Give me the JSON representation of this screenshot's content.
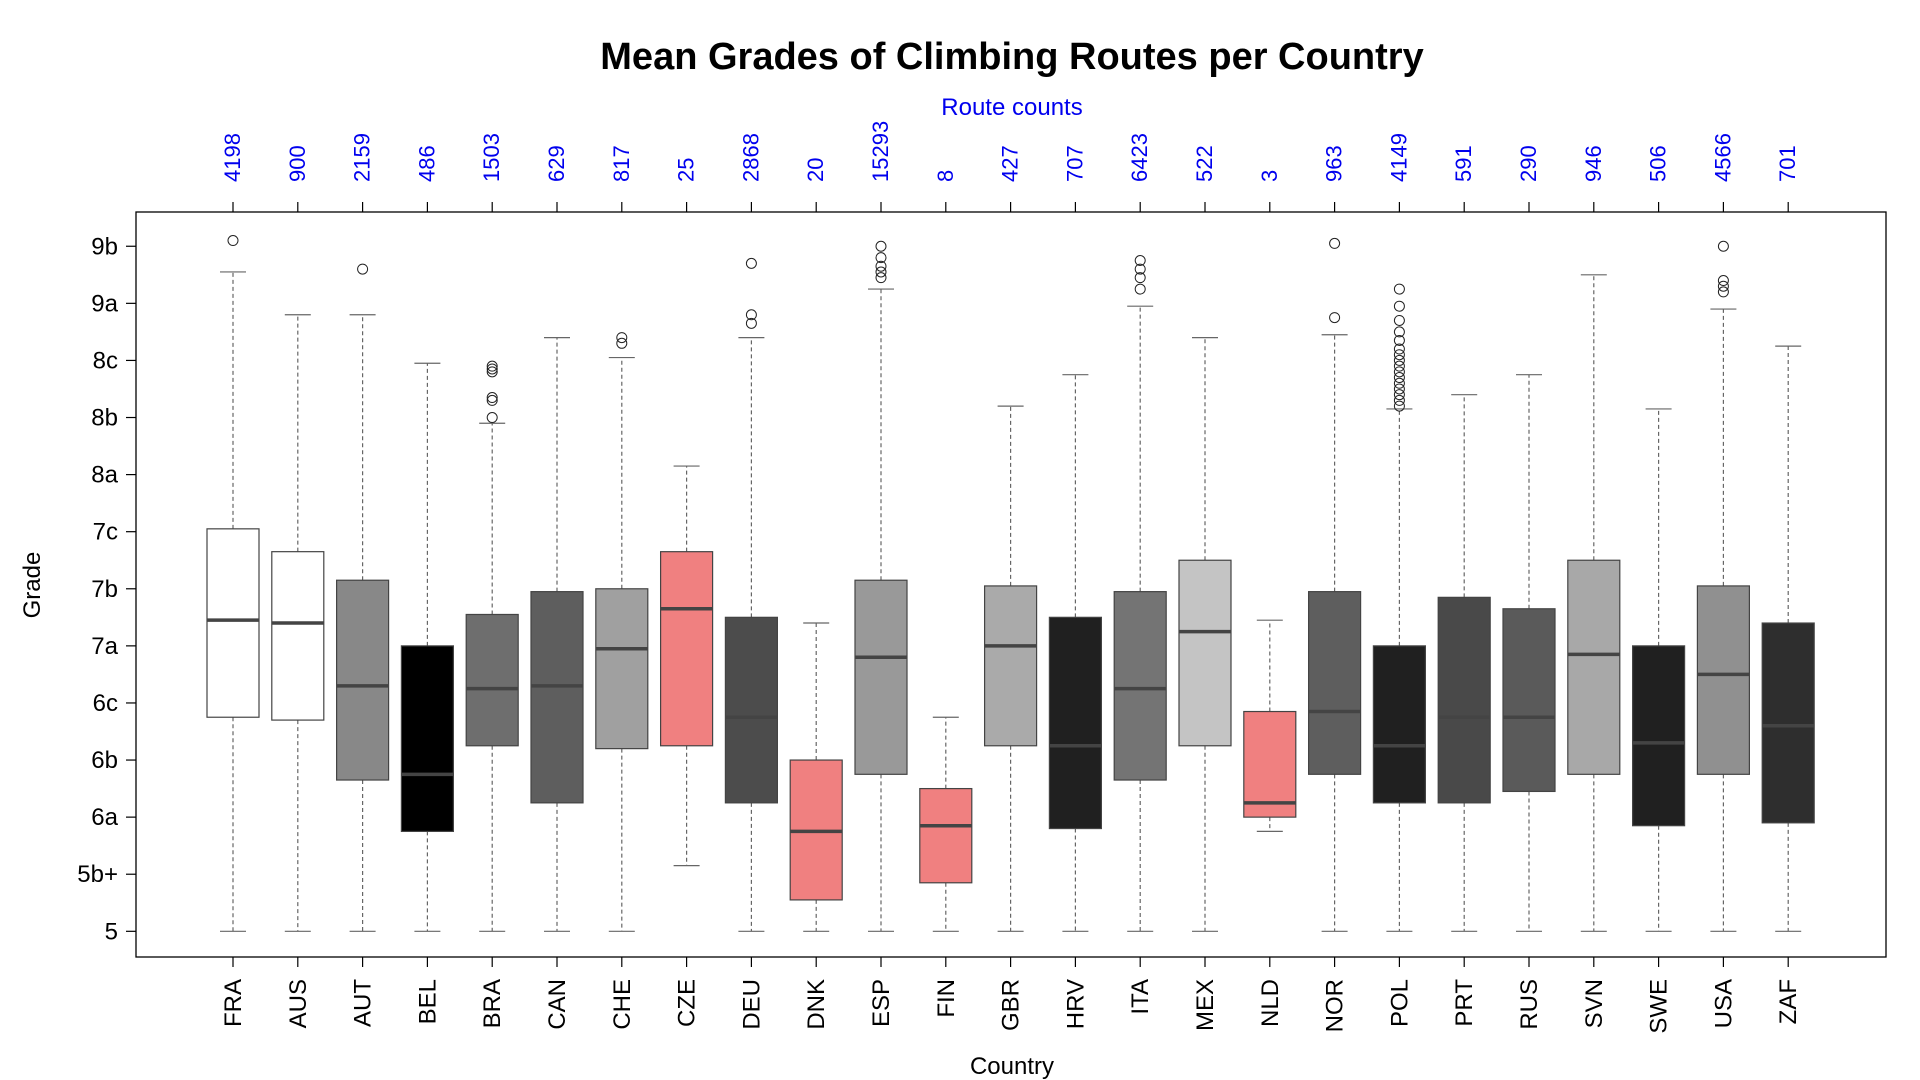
{
  "chart_data": {
    "type": "boxplot",
    "title": "Mean Grades of Climbing Routes per Country",
    "xlabel": "Country",
    "ylabel": "Grade",
    "top_axis_label": "Route counts",
    "y_ticks": [
      {
        "value": 0,
        "label": "5"
      },
      {
        "value": 1,
        "label": "5b+"
      },
      {
        "value": 2,
        "label": "6a"
      },
      {
        "value": 3,
        "label": "6b"
      },
      {
        "value": 4,
        "label": "6c"
      },
      {
        "value": 5,
        "label": "7a"
      },
      {
        "value": 6,
        "label": "7b"
      },
      {
        "value": 7,
        "label": "7c"
      },
      {
        "value": 8,
        "label": "8a"
      },
      {
        "value": 9,
        "label": "8b"
      },
      {
        "value": 10,
        "label": "8c"
      },
      {
        "value": 11,
        "label": "9a"
      },
      {
        "value": 12,
        "label": "9b"
      }
    ],
    "ylim": [
      -0.45,
      12.6
    ],
    "colors": {
      "highlight": "#f08080",
      "count": "#0000ee",
      "whisker": "#666666"
    },
    "series": [
      {
        "country": "FRA",
        "count": "4198",
        "fill": "#ffffff",
        "min": 0,
        "q1": 3.75,
        "median": 5.45,
        "q3": 7.05,
        "max": 11.55,
        "outliers": [
          12.1
        ]
      },
      {
        "country": "AUS",
        "count": "900",
        "fill": "#ffffff",
        "min": 0,
        "q1": 3.7,
        "median": 5.4,
        "q3": 6.65,
        "max": 10.8,
        "outliers": []
      },
      {
        "country": "AUT",
        "count": "2159",
        "fill": "#888888",
        "min": 0,
        "q1": 2.65,
        "median": 4.3,
        "q3": 6.15,
        "max": 10.8,
        "outliers": [
          11.6
        ]
      },
      {
        "country": "BEL",
        "count": "486",
        "fill": "#000000",
        "min": 0,
        "q1": 1.75,
        "median": 2.75,
        "q3": 5.0,
        "max": 9.95,
        "outliers": []
      },
      {
        "country": "BRA",
        "count": "1503",
        "fill": "#6e6e6e",
        "min": 0,
        "q1": 3.25,
        "median": 4.25,
        "q3": 5.55,
        "max": 8.9,
        "outliers": [
          9.0,
          9.3,
          9.35,
          9.8,
          9.85,
          9.9
        ]
      },
      {
        "country": "CAN",
        "count": "629",
        "fill": "#5e5e5e",
        "min": 0,
        "q1": 2.25,
        "median": 4.3,
        "q3": 5.95,
        "max": 10.4,
        "outliers": []
      },
      {
        "country": "CHE",
        "count": "817",
        "fill": "#a0a0a0",
        "min": 0,
        "q1": 3.2,
        "median": 4.95,
        "q3": 6.0,
        "max": 10.05,
        "outliers": [
          10.3,
          10.4
        ]
      },
      {
        "country": "CZE",
        "count": "25",
        "fill": "#f08080",
        "min": 1.15,
        "q1": 3.25,
        "median": 5.65,
        "q3": 6.65,
        "max": 8.15,
        "outliers": []
      },
      {
        "country": "DEU",
        "count": "2868",
        "fill": "#4c4c4c",
        "min": 0,
        "q1": 2.25,
        "median": 3.75,
        "q3": 5.5,
        "max": 10.4,
        "outliers": [
          10.65,
          10.8,
          11.7
        ]
      },
      {
        "country": "DNK",
        "count": "20",
        "fill": "#f08080",
        "min": 0,
        "q1": 0.55,
        "median": 1.75,
        "q3": 3.0,
        "max": 5.4,
        "outliers": []
      },
      {
        "country": "ESP",
        "count": "15293",
        "fill": "#999999",
        "min": 0,
        "q1": 2.75,
        "median": 4.8,
        "q3": 6.15,
        "max": 11.25,
        "outliers": [
          11.45,
          11.55,
          11.65,
          11.8,
          12.0
        ]
      },
      {
        "country": "FIN",
        "count": "8",
        "fill": "#f08080",
        "min": 0,
        "q1": 0.85,
        "median": 1.85,
        "q3": 2.5,
        "max": 3.75,
        "outliers": []
      },
      {
        "country": "GBR",
        "count": "427",
        "fill": "#aaaaaa",
        "min": 0,
        "q1": 3.25,
        "median": 5.0,
        "q3": 6.05,
        "max": 9.2,
        "outliers": []
      },
      {
        "country": "HRV",
        "count": "707",
        "fill": "#202020",
        "min": 0,
        "q1": 1.8,
        "median": 3.25,
        "q3": 5.5,
        "max": 9.75,
        "outliers": []
      },
      {
        "country": "ITA",
        "count": "6423",
        "fill": "#747474",
        "min": 0,
        "q1": 2.65,
        "median": 4.25,
        "q3": 5.95,
        "max": 10.95,
        "outliers": [
          11.25,
          11.45,
          11.6,
          11.75
        ]
      },
      {
        "country": "MEX",
        "count": "522",
        "fill": "#c4c4c4",
        "min": 0,
        "q1": 3.25,
        "median": 5.25,
        "q3": 6.5,
        "max": 10.4,
        "outliers": []
      },
      {
        "country": "NLD",
        "count": "3",
        "fill": "#f08080",
        "min": 1.75,
        "q1": 2.0,
        "median": 2.25,
        "q3": 3.85,
        "max": 5.45,
        "outliers": []
      },
      {
        "country": "NOR",
        "count": "963",
        "fill": "#5e5e5e",
        "min": 0,
        "q1": 2.75,
        "median": 3.85,
        "q3": 5.95,
        "max": 10.45,
        "outliers": [
          10.75,
          12.05
        ]
      },
      {
        "country": "POL",
        "count": "4149",
        "fill": "#202020",
        "min": 0,
        "q1": 2.25,
        "median": 3.25,
        "q3": 5.0,
        "max": 9.15,
        "outliers": [
          9.2,
          9.3,
          9.4,
          9.5,
          9.6,
          9.7,
          9.8,
          9.9,
          10.0,
          10.1,
          10.2,
          10.35,
          10.5,
          10.7,
          10.95,
          11.25
        ]
      },
      {
        "country": "PRT",
        "count": "591",
        "fill": "#494949",
        "min": 0,
        "q1": 2.25,
        "median": 3.75,
        "q3": 5.85,
        "max": 9.4,
        "outliers": []
      },
      {
        "country": "RUS",
        "count": "290",
        "fill": "#5a5a5a",
        "min": 0,
        "q1": 2.45,
        "median": 3.75,
        "q3": 5.65,
        "max": 9.75,
        "outliers": []
      },
      {
        "country": "SVN",
        "count": "946",
        "fill": "#a8a8a8",
        "min": 0,
        "q1": 2.75,
        "median": 4.85,
        "q3": 6.5,
        "max": 11.5,
        "outliers": []
      },
      {
        "country": "SWE",
        "count": "506",
        "fill": "#202020",
        "min": 0,
        "q1": 1.85,
        "median": 3.3,
        "q3": 5.0,
        "max": 9.15,
        "outliers": []
      },
      {
        "country": "USA",
        "count": "4566",
        "fill": "#909090",
        "min": 0,
        "q1": 2.75,
        "median": 4.5,
        "q3": 6.05,
        "max": 10.9,
        "outliers": [
          11.2,
          11.3,
          11.4,
          12.0
        ]
      },
      {
        "country": "ZAF",
        "count": "701",
        "fill": "#2e2e2e",
        "min": 0,
        "q1": 1.9,
        "median": 3.6,
        "q3": 5.4,
        "max": 10.25,
        "outliers": []
      }
    ]
  }
}
